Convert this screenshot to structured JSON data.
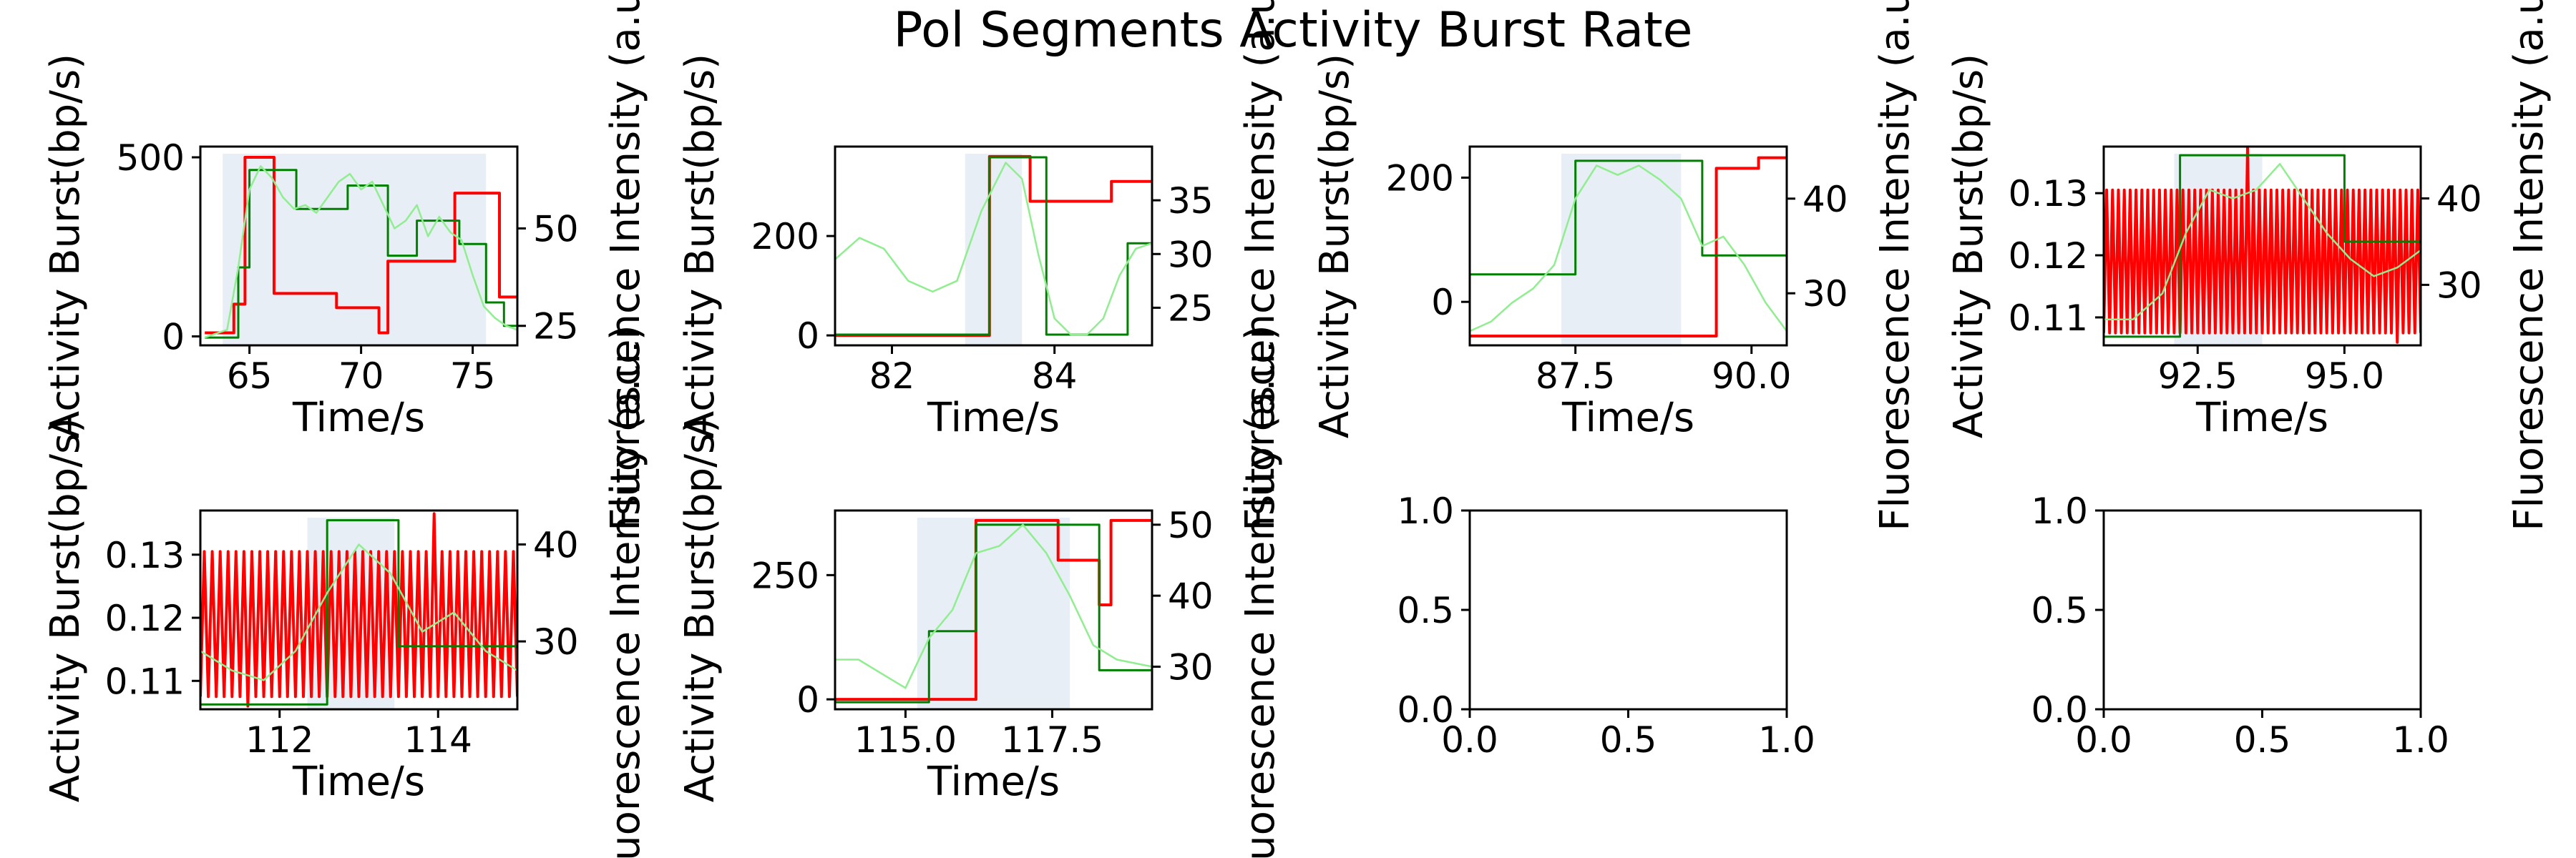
{
  "figure": {
    "title": "Pol Segments Activity Burst Rate"
  },
  "chart_data": [
    {
      "type": "line",
      "panel": "row1-col1",
      "xlabel": "Time/s",
      "ylabel": "Activity Burst(bp/s)",
      "y2label": "Fluorescence Intensity (a.u.)",
      "xlim": [
        62.8,
        77.0
      ],
      "ylim": [
        -25,
        530
      ],
      "y2lim": [
        20,
        71
      ],
      "xticks": [
        65,
        70,
        75
      ],
      "yticks": [
        0,
        500
      ],
      "y2ticks": [
        25,
        50
      ],
      "shaded_span": [
        63.8,
        75.6
      ],
      "series": [
        {
          "role": "activity-burst",
          "color": "#ff0000",
          "axis": "left",
          "step": true,
          "x": [
            63.0,
            64.3,
            64.8,
            65.7,
            66.1,
            68.0,
            68.9,
            70.8,
            71.2,
            74.2,
            76.2,
            77.0
          ],
          "y": [
            10,
            90,
            500,
            500,
            120,
            120,
            80,
            10,
            210,
            400,
            110,
            110
          ]
        },
        {
          "role": "fluorescence-step",
          "color": "#008000",
          "axis": "right",
          "step": true,
          "x": [
            63.0,
            64.5,
            65.0,
            66.2,
            67.1,
            68.9,
            69.4,
            70.8,
            71.2,
            72.5,
            73.7,
            74.4,
            75.6,
            76.4,
            77.0
          ],
          "y": [
            22,
            40,
            65,
            65,
            55,
            55,
            61,
            61,
            43,
            52,
            52,
            46,
            31,
            25,
            25
          ]
        },
        {
          "role": "fluorescence-raw",
          "color": "#90ee90",
          "axis": "right",
          "x": [
            63.0,
            63.5,
            64.0,
            64.5,
            65.0,
            65.5,
            66.0,
            66.5,
            67.0,
            67.5,
            68.0,
            68.5,
            69.0,
            69.5,
            70.0,
            70.5,
            71.0,
            71.5,
            72.0,
            72.5,
            73.0,
            73.5,
            74.0,
            74.5,
            75.0,
            75.5,
            76.0,
            76.5,
            77.0
          ],
          "y": [
            22,
            23,
            24,
            40,
            60,
            66,
            63,
            58,
            55,
            56,
            54,
            58,
            62,
            64,
            60,
            62,
            56,
            50,
            52,
            56,
            48,
            53,
            49,
            47,
            38,
            30,
            27,
            25,
            24
          ]
        }
      ]
    },
    {
      "type": "line",
      "panel": "row1-col2",
      "xlabel": "Time/s",
      "ylabel": "Activity Burst(bp/s)",
      "y2label": "Fluorescence Intensity (a.u.)",
      "xlim": [
        81.3,
        85.2
      ],
      "ylim": [
        -20,
        380
      ],
      "y2lim": [
        21.5,
        40
      ],
      "xticks": [
        82,
        84
      ],
      "yticks": [
        0,
        200
      ],
      "y2ticks": [
        25,
        30,
        35
      ],
      "shaded_span": [
        82.9,
        83.6
      ],
      "series": [
        {
          "role": "activity-burst",
          "color": "#ff0000",
          "axis": "left",
          "step": true,
          "x": [
            81.3,
            83.0,
            83.2,
            83.6,
            83.7,
            84.5,
            84.7,
            85.2
          ],
          "y": [
            0,
            0,
            360,
            360,
            270,
            270,
            310,
            310
          ]
        },
        {
          "role": "fluorescence-step",
          "color": "#008000",
          "axis": "right",
          "step": true,
          "x": [
            81.3,
            82.8,
            83.2,
            83.6,
            83.9,
            84.3,
            84.9,
            85.2
          ],
          "y": [
            22.5,
            22.5,
            39,
            39,
            22.5,
            22.5,
            31,
            31
          ]
        },
        {
          "role": "fluorescence-raw",
          "color": "#90ee90",
          "axis": "right",
          "x": [
            81.3,
            81.6,
            81.9,
            82.2,
            82.5,
            82.8,
            83.1,
            83.4,
            83.6,
            83.8,
            84.0,
            84.2,
            84.4,
            84.6,
            84.8,
            85.0,
            85.2
          ],
          "y": [
            29.5,
            31.5,
            30.5,
            27.5,
            26.5,
            27.5,
            34,
            38.5,
            37,
            30,
            24,
            22.5,
            22.5,
            24,
            28,
            30.5,
            31
          ]
        }
      ]
    },
    {
      "type": "line",
      "panel": "row1-col3",
      "xlabel": "Time/s",
      "ylabel": "Activity Burst(bp/s)",
      "y2label": "Fluorescence Intensity (a.u.)",
      "xlim": [
        86.0,
        90.5
      ],
      "ylim": [
        -70,
        250
      ],
      "y2lim": [
        24.5,
        45.5
      ],
      "xticks": [
        87.5,
        90.0
      ],
      "yticks": [
        0,
        200
      ],
      "y2ticks": [
        30,
        40
      ],
      "shaded_span": [
        87.3,
        89.0
      ],
      "series": [
        {
          "role": "activity-burst",
          "color": "#ff0000",
          "axis": "left",
          "step": true,
          "x": [
            86.0,
            89.4,
            89.5,
            90.1,
            90.5
          ],
          "y": [
            -55,
            -55,
            215,
            232,
            232
          ]
        },
        {
          "role": "fluorescence-step",
          "color": "#008000",
          "axis": "right",
          "step": true,
          "x": [
            86.0,
            87.2,
            87.5,
            89.0,
            89.3,
            90.2,
            90.5
          ],
          "y": [
            32,
            32,
            44,
            44,
            34,
            34,
            26
          ]
        },
        {
          "role": "fluorescence-raw",
          "color": "#90ee90",
          "axis": "right",
          "x": [
            86.0,
            86.3,
            86.6,
            86.9,
            87.2,
            87.5,
            87.8,
            88.1,
            88.4,
            88.7,
            89.0,
            89.3,
            89.6,
            89.9,
            90.2,
            90.5
          ],
          "y": [
            26,
            27,
            29,
            30.5,
            33,
            40,
            43.5,
            42.5,
            43.5,
            42,
            40,
            35,
            36,
            33,
            29,
            26
          ]
        }
      ]
    },
    {
      "type": "line",
      "panel": "row1-col4",
      "xlabel": "Time/s",
      "ylabel": "Activity Burst(bp/s)",
      "y2label": "Fluorescence Intensity (a.u.)",
      "xlim": [
        90.9,
        96.3
      ],
      "ylim": [
        0.1055,
        0.1375
      ],
      "y2lim": [
        23,
        46
      ],
      "xticks": [
        92.5,
        95.0
      ],
      "yticks": [
        0.11,
        0.12,
        0.13
      ],
      "y2ticks": [
        30,
        40
      ],
      "shaded_span": [
        92.1,
        93.6
      ],
      "series": [
        {
          "role": "activity-burst",
          "color": "#ff0000",
          "axis": "left",
          "oscillating": true,
          "x": [
            90.9,
            96.3
          ],
          "low": 0.1075,
          "high": 0.1305,
          "cycles": 54,
          "spikes": [
            {
              "x": 93.35,
              "y": 0.1375
            },
            {
              "x": 95.9,
              "y": 0.106
            }
          ]
        },
        {
          "role": "fluorescence-step",
          "color": "#008000",
          "axis": "right",
          "step": true,
          "x": [
            90.9,
            91.5,
            92.2,
            94.9,
            95.0,
            96.3
          ],
          "y": [
            24,
            24,
            45,
            45,
            35,
            35
          ]
        },
        {
          "role": "fluorescence-raw",
          "color": "#90ee90",
          "axis": "right",
          "x": [
            90.9,
            91.4,
            91.9,
            92.3,
            92.7,
            93.1,
            93.5,
            93.9,
            94.3,
            94.7,
            95.1,
            95.5,
            95.9,
            96.3
          ],
          "y": [
            26,
            26,
            29,
            36,
            41,
            40,
            41,
            44,
            40,
            36,
            33,
            31,
            32,
            34
          ]
        }
      ]
    },
    {
      "type": "line",
      "panel": "row2-col1",
      "xlabel": "Time/s",
      "ylabel": "Activity Burst(bp/s)",
      "y2label": "Fluorescence Intensity (a.u.)",
      "xlim": [
        111.0,
        115.0
      ],
      "ylim": [
        0.1055,
        0.137
      ],
      "y2lim": [
        23,
        43.5
      ],
      "xticks": [
        112,
        114
      ],
      "yticks": [
        0.11,
        0.12,
        0.13
      ],
      "y2ticks": [
        30,
        40
      ],
      "shaded_span": [
        112.35,
        113.45
      ],
      "series": [
        {
          "role": "activity-burst",
          "color": "#ff0000",
          "axis": "left",
          "oscillating": true,
          "x": [
            111.0,
            115.0
          ],
          "low": 0.1075,
          "high": 0.1305,
          "cycles": 40,
          "spikes": [
            {
              "x": 113.95,
              "y": 0.1365
            },
            {
              "x": 111.6,
              "y": 0.106
            }
          ]
        },
        {
          "role": "fluorescence-step",
          "color": "#008000",
          "axis": "right",
          "step": true,
          "x": [
            111.0,
            112.35,
            112.6,
            113.45,
            113.5,
            115.0
          ],
          "y": [
            23.5,
            23.5,
            42.5,
            42.5,
            29.5,
            29.5
          ]
        },
        {
          "role": "fluorescence-raw",
          "color": "#90ee90",
          "axis": "right",
          "x": [
            111.0,
            111.4,
            111.8,
            112.2,
            112.6,
            113.0,
            113.4,
            113.8,
            114.2,
            114.6,
            115.0
          ],
          "y": [
            29,
            27,
            26,
            29,
            35,
            40,
            37,
            31,
            33,
            29,
            27
          ]
        }
      ]
    },
    {
      "type": "line",
      "panel": "row2-col2",
      "xlabel": "Time/s",
      "ylabel": "Activity Burst(bp/s)",
      "y2label": "Fluorescence Intensity (a.u.)",
      "xlim": [
        113.8,
        119.2
      ],
      "ylim": [
        -20,
        380
      ],
      "y2lim": [
        24,
        52
      ],
      "xticks": [
        115.0,
        117.5
      ],
      "yticks": [
        0,
        250
      ],
      "y2ticks": [
        30,
        40,
        50
      ],
      "shaded_span": [
        115.2,
        117.8
      ],
      "series": [
        {
          "role": "activity-burst",
          "color": "#ff0000",
          "axis": "left",
          "step": true,
          "x": [
            113.8,
            116.0,
            116.2,
            117.0,
            117.6,
            118.3,
            118.5,
            119.2
          ],
          "y": [
            0,
            0,
            360,
            360,
            280,
            190,
            360,
            360
          ]
        },
        {
          "role": "fluorescence-step",
          "color": "#008000",
          "axis": "right",
          "step": true,
          "x": [
            113.8,
            115.1,
            115.4,
            116.0,
            116.2,
            117.6,
            118.3,
            119.2
          ],
          "y": [
            25,
            25,
            35,
            35,
            50,
            50,
            29.5,
            29.5
          ]
        },
        {
          "role": "fluorescence-raw",
          "color": "#90ee90",
          "axis": "right",
          "x": [
            113.8,
            114.2,
            114.6,
            115.0,
            115.4,
            115.8,
            116.2,
            116.6,
            117.0,
            117.4,
            117.8,
            118.2,
            118.6,
            119.2
          ],
          "y": [
            31,
            31,
            29,
            27,
            34,
            38,
            46,
            47,
            50,
            46,
            40,
            33,
            31,
            30
          ]
        }
      ]
    },
    {
      "type": "line",
      "panel": "row2-col3",
      "empty": true,
      "xlim": [
        0,
        1
      ],
      "ylim": [
        0,
        1
      ],
      "xticks": [
        0.0,
        0.5,
        1.0
      ],
      "yticks": [
        0.0,
        0.5,
        1.0
      ]
    },
    {
      "type": "line",
      "panel": "row2-col4",
      "empty": true,
      "xlim": [
        0,
        1
      ],
      "ylim": [
        0,
        1
      ],
      "xticks": [
        0.0,
        0.5,
        1.0
      ],
      "yticks": [
        0.0,
        0.5,
        1.0
      ]
    }
  ]
}
